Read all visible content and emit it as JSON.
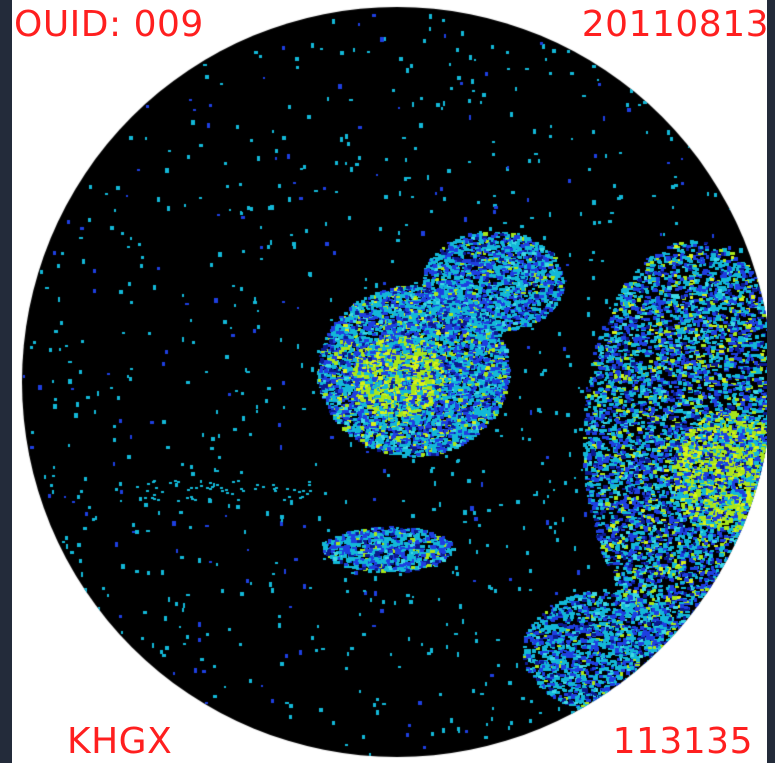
{
  "labels": {
    "object_id": "OUID: 009",
    "date": "20110813",
    "station": "KHGX",
    "time": "113135"
  },
  "colors": {
    "label_text": "#ff1f1f",
    "scope_background": "#000000",
    "frame_background": "#ffffff",
    "page_border": "#232b3a",
    "echo_palette": [
      "#0b1a8f",
      "#1e3fe0",
      "#12b8d8",
      "#3dd9e6",
      "#a8e61a",
      "#d7f21a"
    ]
  }
}
